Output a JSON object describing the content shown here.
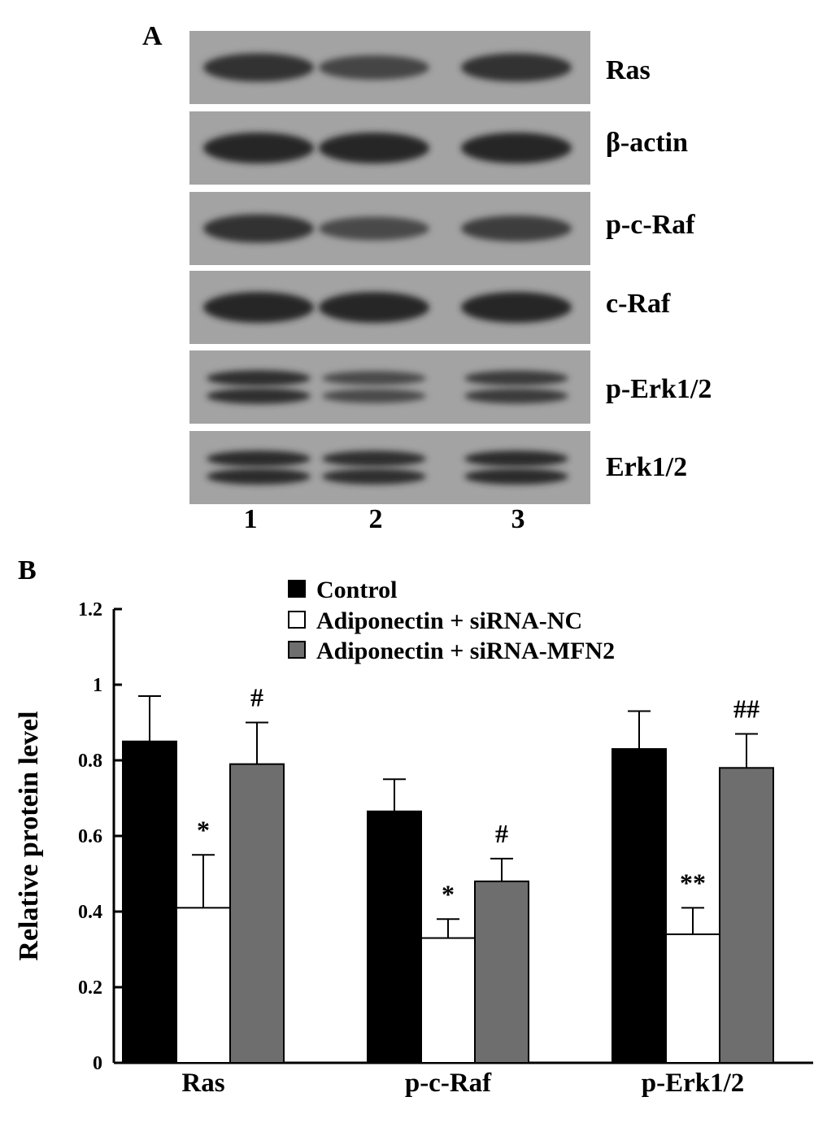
{
  "panel_a": {
    "letter": "A",
    "bands": [
      {
        "label": "Ras",
        "intensity": [
          0.85,
          0.6,
          0.85
        ],
        "double": false
      },
      {
        "label": "β-actin",
        "intensity": [
          1.0,
          1.0,
          1.0
        ],
        "double": false
      },
      {
        "label": "p-c-Raf",
        "intensity": [
          0.85,
          0.55,
          0.7
        ],
        "double": false
      },
      {
        "label": "c-Raf",
        "intensity": [
          1.0,
          1.0,
          1.0
        ],
        "double": false
      },
      {
        "label": "p-Erk1/2",
        "intensity": [
          0.9,
          0.55,
          0.75
        ],
        "double": true
      },
      {
        "label": "Erk1/2",
        "intensity": [
          0.95,
          0.9,
          0.95
        ],
        "double": true
      }
    ],
    "lanes": [
      "1",
      "2",
      "3"
    ]
  },
  "panel_b": {
    "letter": "B"
  },
  "chart_data": {
    "type": "bar",
    "categories": [
      "Ras",
      "p-c-Raf",
      "p-Erk1/2"
    ],
    "series": [
      {
        "name": "Control",
        "color": "#000000",
        "values": [
          0.85,
          0.665,
          0.83
        ],
        "errors": [
          0.12,
          0.085,
          0.1
        ],
        "significance": [
          "",
          "",
          ""
        ]
      },
      {
        "name": "Adiponectin + siRNA-NC",
        "color": "#ffffff",
        "values": [
          0.41,
          0.33,
          0.34
        ],
        "errors": [
          0.14,
          0.05,
          0.07
        ],
        "significance": [
          "*",
          "*",
          "**"
        ]
      },
      {
        "name": "Adiponectin + siRNA-MFN2",
        "color": "#6e6e6e",
        "values": [
          0.79,
          0.48,
          0.78
        ],
        "errors": [
          0.11,
          0.06,
          0.09
        ],
        "significance": [
          "#",
          "#",
          "##"
        ]
      }
    ],
    "ylabel": "Relative protein level",
    "xlabel": "",
    "ylim": [
      0,
      1.2
    ],
    "yticks": [
      "0",
      "0.2",
      "0.4",
      "0.6",
      "0.8",
      "1",
      "1.2"
    ],
    "legend_position": "top-center",
    "grid": false
  }
}
